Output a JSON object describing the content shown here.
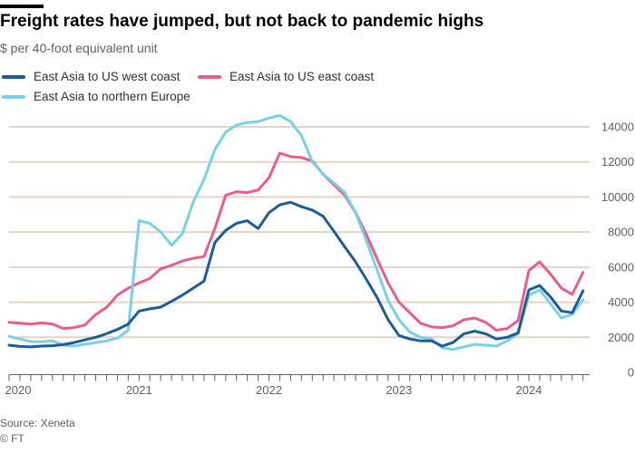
{
  "header": {
    "title": "Freight rates have jumped, but not back to pandemic highs",
    "subtitle": "$ per 40-foot equivalent unit",
    "accent_bar_color": "#000000"
  },
  "legend": [
    {
      "label": "East Asia to US west coast",
      "color": "#1d5c99"
    },
    {
      "label": "East Asia to US east coast",
      "color": "#e85d8d"
    },
    {
      "label": "East Asia to northern Europe",
      "color": "#7ad1e4"
    }
  ],
  "footer": {
    "source": "Source: Xeneta",
    "copyright": "© FT"
  },
  "chart_data": {
    "type": "line",
    "title": "Freight rates have jumped, but not back to pandemic highs",
    "subtitle": "$ per 40-foot equivalent unit",
    "xlabel": "",
    "ylabel": "$ per 40-foot equivalent unit",
    "ylim": [
      0,
      14000
    ],
    "yticks": [
      0,
      2000,
      4000,
      6000,
      8000,
      10000,
      12000,
      14000
    ],
    "xticklabels": [
      "2020",
      "2021",
      "2022",
      "2023",
      "2024"
    ],
    "x_start": "2020-01",
    "x_end": "2024-06",
    "x_interval": "monthly",
    "grid": "horizontal",
    "legend_position": "top-left",
    "grid_color": "#e3d4c5",
    "axis_color": "#66605c",
    "draw_order": [
      1,
      2,
      0
    ],
    "series": [
      {
        "name": "East Asia to US west coast",
        "color": "#1d5c99",
        "values": [
          1550,
          1480,
          1450,
          1500,
          1520,
          1580,
          1700,
          1850,
          2000,
          2200,
          2450,
          2750,
          3500,
          3620,
          3720,
          4050,
          4400,
          4800,
          5200,
          7400,
          8100,
          8500,
          8650,
          8200,
          9100,
          9550,
          9700,
          9450,
          9250,
          8900,
          8050,
          7150,
          6300,
          5300,
          4250,
          3000,
          2100,
          1900,
          1800,
          1800,
          1500,
          1700,
          2200,
          2350,
          2200,
          1900,
          2000,
          2250,
          4700,
          4950,
          4300,
          3500,
          3400,
          4650
        ]
      },
      {
        "name": "East Asia to US east coast",
        "color": "#e85d8d",
        "values": [
          2850,
          2800,
          2750,
          2820,
          2760,
          2500,
          2550,
          2700,
          3300,
          3700,
          4400,
          4800,
          5100,
          5350,
          5900,
          6100,
          6350,
          6500,
          6600,
          8200,
          10100,
          10300,
          10250,
          10400,
          11100,
          12500,
          12300,
          12250,
          12050,
          11300,
          10700,
          10100,
          9100,
          7850,
          6450,
          5100,
          4000,
          3400,
          2800,
          2600,
          2550,
          2650,
          3000,
          3100,
          2850,
          2400,
          2500,
          2950,
          5800,
          6300,
          5600,
          4800,
          4450,
          5700
        ]
      },
      {
        "name": "East Asia to northern Europe",
        "color": "#7ad1e4",
        "values": [
          2050,
          1900,
          1750,
          1750,
          1800,
          1550,
          1500,
          1600,
          1700,
          1800,
          1950,
          2400,
          8650,
          8500,
          8000,
          7250,
          7900,
          9700,
          11000,
          12700,
          13700,
          14100,
          14250,
          14300,
          14500,
          14650,
          14300,
          13500,
          12000,
          11300,
          10800,
          10250,
          9100,
          7500,
          5800,
          4100,
          3000,
          2300,
          2000,
          1900,
          1400,
          1300,
          1450,
          1600,
          1550,
          1500,
          1800,
          2200,
          4400,
          4700,
          3900,
          3100,
          3300,
          4150
        ]
      }
    ]
  }
}
